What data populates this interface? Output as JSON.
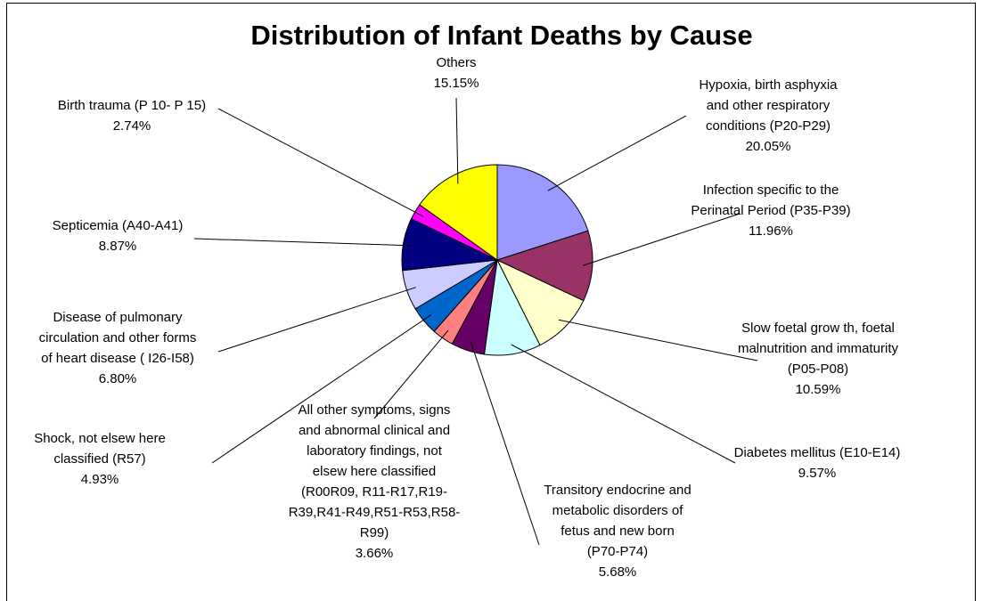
{
  "chart_data": {
    "type": "pie",
    "title": "Distribution of Infant Deaths by Cause",
    "categories": [
      "Hypoxia, birth asphyxia\nand other respiratory\nconditions (P20-P29)",
      "Infection specific to the\nPerinatal Period  (P35-P39)",
      "Slow  foetal grow th, foetal\nmalnutrition and immaturity\n(P05-P08)",
      "Diabetes mellitus (E10-E14)",
      "Transitory endocrine and\nmetabolic disorders of\nfetus and new born\n(P70-P74)",
      "All other symptoms, signs\nand abnormal clinical and\nlaboratory findings, not\nelsew here classified\n(R00R09, R11-R17,R19-\nR39,R41-R49,R51-R53,R58-\nR99)",
      "Shock, not elsew here\nclassified (R57)",
      "Disease of pulmonary\ncirculation and other forms\nof heart disease  ( I26-I58)",
      "Septicemia (A40-A41)",
      "Birth trauma (P 10- P 15)",
      "Others"
    ],
    "values": [
      20.05,
      11.96,
      10.59,
      9.57,
      5.68,
      3.66,
      4.93,
      6.8,
      8.87,
      2.74,
      15.15
    ],
    "value_labels": [
      "20.05%",
      "11.96%",
      "10.59%",
      "9.57%",
      "5.68%",
      "3.66%",
      "4.93%",
      "6.80%",
      "8.87%",
      "2.74%",
      "15.15%"
    ],
    "colors": [
      "#9999ff",
      "#993366",
      "#ffffcc",
      "#ccffff",
      "#660066",
      "#ff8080",
      "#0066cc",
      "#ccccff",
      "#000080",
      "#ff00ff",
      "#ffff00"
    ]
  }
}
